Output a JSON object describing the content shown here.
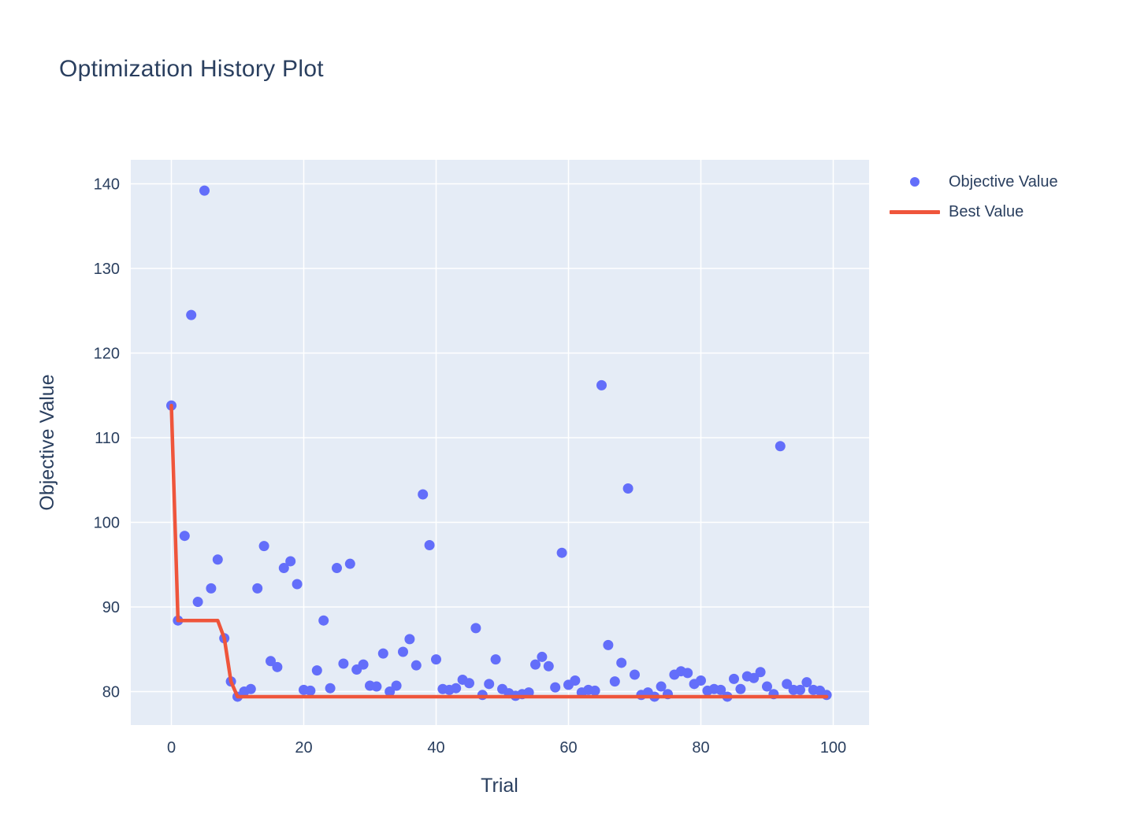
{
  "chart_data": {
    "type": "scatter",
    "title": "Optimization History Plot",
    "xlabel": "Trial",
    "ylabel": "Objective Value",
    "xticks": [
      0,
      20,
      40,
      60,
      80,
      100
    ],
    "yticks": [
      80,
      90,
      100,
      110,
      120,
      130,
      140
    ],
    "xlim": [
      -6.1,
      105.4
    ],
    "ylim": [
      76.1,
      142.8
    ],
    "grid": true,
    "legend_position": "right-top",
    "colors": {
      "objective_marker": "#636efa",
      "best_line": "#ef553b",
      "plot_background": "#e5ecf6",
      "grid": "#ffffff",
      "text": "#2a3f5f",
      "page_background": "#ffffff"
    },
    "legend": [
      {
        "label": "Objective Value",
        "marker": "dot",
        "color": "#636efa"
      },
      {
        "label": "Best Value",
        "marker": "line",
        "color": "#ef553b"
      }
    ],
    "series": [
      {
        "name": "Objective Value",
        "type": "scatter",
        "x_is_trial_index": true,
        "values": [
          113.8,
          88.4,
          98.4,
          124.5,
          90.6,
          139.2,
          92.2,
          95.6,
          86.3,
          81.2,
          79.4,
          80.0,
          80.3,
          92.2,
          97.2,
          83.6,
          82.9,
          94.6,
          95.4,
          92.7,
          80.2,
          80.1,
          82.5,
          88.4,
          80.4,
          94.6,
          83.3,
          95.1,
          82.6,
          83.2,
          80.7,
          80.6,
          84.5,
          80.0,
          80.7,
          84.7,
          86.2,
          83.1,
          103.3,
          97.3,
          83.8,
          80.3,
          80.2,
          80.4,
          81.4,
          81.0,
          87.5,
          79.6,
          80.9,
          83.8,
          80.3,
          79.8,
          79.5,
          79.7,
          79.9,
          83.2,
          84.1,
          83.0,
          80.5,
          96.4,
          80.8,
          81.3,
          79.9,
          80.2,
          80.1,
          116.2,
          85.5,
          81.2,
          83.4,
          104.0,
          82.0,
          79.6,
          79.9,
          79.4,
          80.6,
          79.7,
          82.0,
          82.4,
          82.2,
          80.9,
          81.3,
          80.1,
          80.3,
          80.2,
          79.4,
          81.5,
          80.3,
          81.8,
          81.6,
          82.3,
          80.6,
          79.7,
          109.0,
          80.9,
          80.2,
          80.2,
          81.1,
          80.2,
          80.1,
          79.6
        ]
      },
      {
        "name": "Best Value",
        "type": "line",
        "x_is_trial_index": true,
        "values": [
          113.8,
          88.4,
          88.4,
          88.4,
          88.4,
          88.4,
          88.4,
          88.4,
          86.3,
          81.2,
          79.4,
          79.4,
          79.4,
          79.4,
          79.4,
          79.4,
          79.4,
          79.4,
          79.4,
          79.4,
          79.4,
          79.4,
          79.4,
          79.4,
          79.4,
          79.4,
          79.4,
          79.4,
          79.4,
          79.4,
          79.4,
          79.4,
          79.4,
          79.4,
          79.4,
          79.4,
          79.4,
          79.4,
          79.4,
          79.4,
          79.4,
          79.4,
          79.4,
          79.4,
          79.4,
          79.4,
          79.4,
          79.4,
          79.4,
          79.4,
          79.4,
          79.4,
          79.4,
          79.4,
          79.4,
          79.4,
          79.4,
          79.4,
          79.4,
          79.4,
          79.4,
          79.4,
          79.4,
          79.4,
          79.4,
          79.4,
          79.4,
          79.4,
          79.4,
          79.4,
          79.4,
          79.4,
          79.4,
          79.4,
          79.4,
          79.4,
          79.4,
          79.4,
          79.4,
          79.4,
          79.4,
          79.4,
          79.4,
          79.4,
          79.4,
          79.4,
          79.4,
          79.4,
          79.4,
          79.4,
          79.4,
          79.4,
          79.4,
          79.4,
          79.4,
          79.4,
          79.4,
          79.4,
          79.4,
          79.4
        ]
      }
    ]
  }
}
